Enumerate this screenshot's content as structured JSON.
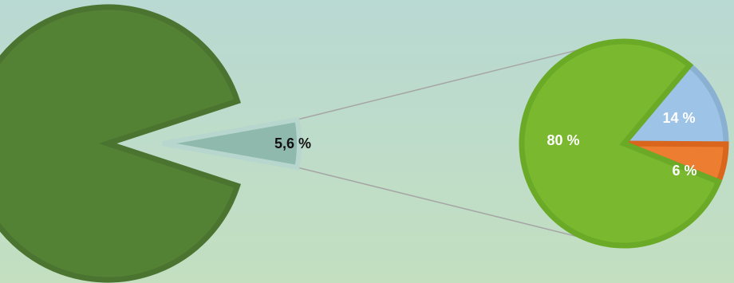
{
  "chart_data": {
    "type": "pie-of-pie",
    "main": {
      "slices": [
        {
          "value": 94.4,
          "label": "",
          "color": "#548235",
          "edge": "#4a7430"
        },
        {
          "value": 5.6,
          "label": "5,6 %",
          "color": "#8fb9ad",
          "edge": "#b7d6cd",
          "exploded": true
        }
      ]
    },
    "secondary": {
      "slices": [
        {
          "value": 14,
          "label": "14 %",
          "color": "#9dc3e6",
          "edge": "#8ab0d2"
        },
        {
          "value": 6,
          "label": "6 %",
          "color": "#ed7d31",
          "edge": "#d9661c"
        },
        {
          "value": 80,
          "label": "80 %",
          "color": "#7ab82f",
          "edge": "#6aaa27"
        }
      ]
    },
    "connector_color": "#a6a6a6",
    "legend": "none"
  }
}
